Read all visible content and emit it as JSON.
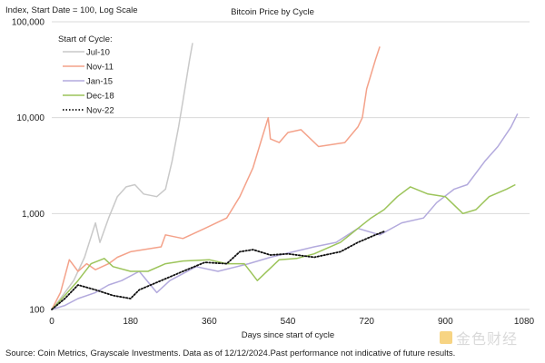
{
  "chart_data": {
    "type": "line",
    "title": "Bitcoin Price by Cycle",
    "ylabel": "Index, Start Date = 100, Log Scale",
    "xlabel": "Days since start of cycle",
    "y_scale": "log",
    "ylim": [
      100,
      100000
    ],
    "xlim": [
      0,
      1080
    ],
    "x_ticks": [
      "0",
      "180",
      "360",
      "540",
      "720",
      "900",
      "1080"
    ],
    "x_tick_values": [
      0,
      180,
      360,
      540,
      720,
      900,
      1080
    ],
    "y_ticks": [
      "100",
      "1,000",
      "10,000",
      "100,000"
    ],
    "y_tick_values": [
      100,
      1000,
      10000,
      100000
    ],
    "grid": "horizontal",
    "legend_title": "Start of Cycle:",
    "legend_position": "top-left",
    "series": [
      {
        "name": "Jul-10",
        "color": "#c9c9c9",
        "dash": "solid",
        "points": [
          [
            0,
            100
          ],
          [
            20,
            130
          ],
          [
            50,
            200
          ],
          [
            75,
            350
          ],
          [
            100,
            800
          ],
          [
            110,
            500
          ],
          [
            130,
            900
          ],
          [
            150,
            1500
          ],
          [
            170,
            1900
          ],
          [
            190,
            2000
          ],
          [
            210,
            1600
          ],
          [
            240,
            1500
          ],
          [
            260,
            1800
          ],
          [
            275,
            3500
          ],
          [
            290,
            8000
          ],
          [
            300,
            15000
          ],
          [
            315,
            40000
          ],
          [
            322,
            60000
          ]
        ]
      },
      {
        "name": "Nov-11",
        "color": "#f4a28a",
        "dash": "solid",
        "points": [
          [
            0,
            100
          ],
          [
            20,
            150
          ],
          [
            40,
            330
          ],
          [
            60,
            250
          ],
          [
            80,
            300
          ],
          [
            100,
            260
          ],
          [
            130,
            300
          ],
          [
            150,
            350
          ],
          [
            180,
            400
          ],
          [
            250,
            450
          ],
          [
            260,
            600
          ],
          [
            300,
            550
          ],
          [
            350,
            700
          ],
          [
            400,
            900
          ],
          [
            430,
            1500
          ],
          [
            460,
            3000
          ],
          [
            480,
            6000
          ],
          [
            495,
            10000
          ],
          [
            500,
            6000
          ],
          [
            520,
            5500
          ],
          [
            540,
            7000
          ],
          [
            570,
            7500
          ],
          [
            610,
            5000
          ],
          [
            670,
            5500
          ],
          [
            700,
            8000
          ],
          [
            710,
            10000
          ],
          [
            720,
            20000
          ],
          [
            740,
            40000
          ],
          [
            750,
            55000
          ]
        ]
      },
      {
        "name": "Jan-15",
        "color": "#b3aadd",
        "dash": "solid",
        "points": [
          [
            0,
            100
          ],
          [
            30,
            110
          ],
          [
            60,
            130
          ],
          [
            100,
            150
          ],
          [
            130,
            180
          ],
          [
            160,
            200
          ],
          [
            200,
            250
          ],
          [
            240,
            150
          ],
          [
            270,
            200
          ],
          [
            330,
            280
          ],
          [
            380,
            250
          ],
          [
            450,
            300
          ],
          [
            500,
            350
          ],
          [
            600,
            450
          ],
          [
            650,
            500
          ],
          [
            700,
            700
          ],
          [
            750,
            600
          ],
          [
            800,
            800
          ],
          [
            850,
            900
          ],
          [
            880,
            1300
          ],
          [
            920,
            1800
          ],
          [
            950,
            2000
          ],
          [
            990,
            3500
          ],
          [
            1020,
            5000
          ],
          [
            1050,
            8000
          ],
          [
            1065,
            11000
          ]
        ]
      },
      {
        "name": "Dec-18",
        "color": "#9cc45a",
        "dash": "solid",
        "points": [
          [
            0,
            100
          ],
          [
            30,
            140
          ],
          [
            60,
            200
          ],
          [
            90,
            300
          ],
          [
            120,
            340
          ],
          [
            140,
            280
          ],
          [
            180,
            250
          ],
          [
            220,
            250
          ],
          [
            260,
            300
          ],
          [
            300,
            320
          ],
          [
            360,
            330
          ],
          [
            400,
            300
          ],
          [
            440,
            300
          ],
          [
            470,
            200
          ],
          [
            520,
            330
          ],
          [
            560,
            340
          ],
          [
            600,
            380
          ],
          [
            660,
            500
          ],
          [
            700,
            700
          ],
          [
            730,
            900
          ],
          [
            760,
            1100
          ],
          [
            790,
            1500
          ],
          [
            820,
            1900
          ],
          [
            860,
            1600
          ],
          [
            900,
            1500
          ],
          [
            940,
            1000
          ],
          [
            970,
            1100
          ],
          [
            1000,
            1500
          ],
          [
            1040,
            1800
          ],
          [
            1060,
            2000
          ]
        ]
      },
      {
        "name": "Nov-22",
        "color": "#111111",
        "dash": "dotted",
        "points": [
          [
            0,
            100
          ],
          [
            30,
            130
          ],
          [
            60,
            180
          ],
          [
            100,
            160
          ],
          [
            140,
            140
          ],
          [
            180,
            130
          ],
          [
            200,
            160
          ],
          [
            250,
            200
          ],
          [
            300,
            250
          ],
          [
            350,
            310
          ],
          [
            400,
            300
          ],
          [
            430,
            400
          ],
          [
            460,
            420
          ],
          [
            500,
            370
          ],
          [
            540,
            380
          ],
          [
            600,
            350
          ],
          [
            660,
            400
          ],
          [
            700,
            500
          ],
          [
            740,
            600
          ],
          [
            760,
            650
          ]
        ]
      }
    ]
  },
  "source": "Source: Coin Metrics, Grayscale Investments. Data as of 12/12/2024.Past performance not indicative of future results.",
  "watermark": "金色财经"
}
